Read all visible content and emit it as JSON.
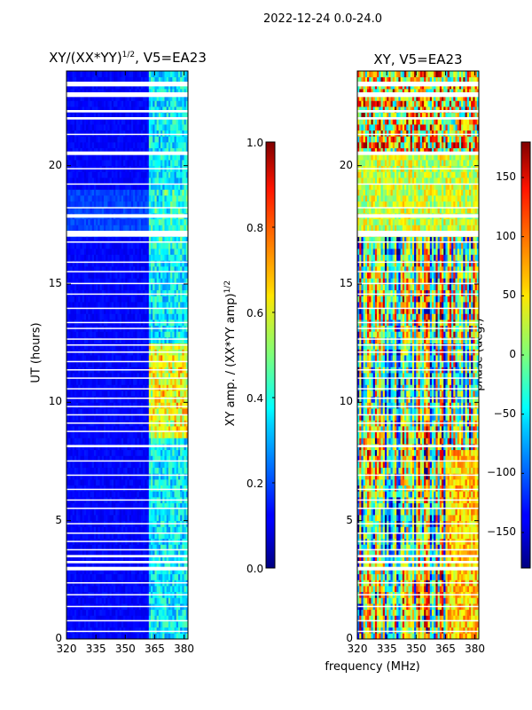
{
  "suptitle": "2022-12-24 0.0-24.0",
  "chart_data": [
    {
      "type": "heatmap",
      "title": "XY/(XX*YY)^1/2, V5=EA23",
      "title_main": "XY/(XX*YY)",
      "title_exp": "1/2",
      "title_tail": ", V5=EA23",
      "xlabel": "",
      "ylabel": "UT (hours)",
      "xlim": [
        320,
        382
      ],
      "ylim": [
        0,
        24
      ],
      "xticks": [
        320,
        335,
        350,
        365,
        380
      ],
      "yticks": [
        0,
        5,
        10,
        15,
        20
      ],
      "colormap": "jet",
      "colorbar": {
        "label": "XY amp. / (XX*YY amp)^1/2",
        "label_main": "XY amp. / (XX*YY amp)",
        "label_exp": "1/2",
        "range": [
          0.0,
          1.0
        ],
        "ticks": [
          "0.0",
          "0.2",
          "0.4",
          "0.6",
          "0.8",
          "1.0"
        ]
      },
      "description_values": "mostly low (~0.05-0.15) except channels ~362-381 MHz with values ~0.3-0.7"
    },
    {
      "type": "heatmap",
      "title": "XY, V5=EA23",
      "xlabel": "frequency (MHz)",
      "ylabel": "",
      "xlim": [
        320,
        382
      ],
      "ylim": [
        0,
        24
      ],
      "xticks": [
        320,
        335,
        350,
        365,
        380
      ],
      "yticks": [
        0,
        5,
        10,
        15,
        20
      ],
      "colormap": "jet",
      "colorbar": {
        "label": "phase (deg.)",
        "range": [
          -180,
          180
        ],
        "ticks": [
          "−150",
          "−100",
          "−50",
          "0",
          "50",
          "100",
          "150"
        ]
      }
    }
  ],
  "gap_bands_hours": [
    [
      23.35,
      23.55
    ],
    [
      22.9,
      23.1
    ],
    [
      22.25,
      22.35
    ],
    [
      21.95,
      22.05
    ],
    [
      21.3,
      21.35
    ],
    [
      20.45,
      20.6
    ],
    [
      19.85,
      19.9
    ],
    [
      19.2,
      19.25
    ],
    [
      18.2,
      18.25
    ],
    [
      17.8,
      17.95
    ],
    [
      17.0,
      17.25
    ],
    [
      16.75,
      16.8
    ],
    [
      15.9,
      15.95
    ],
    [
      15.5,
      15.55
    ],
    [
      15.0,
      15.05
    ],
    [
      14.55,
      14.6
    ],
    [
      13.95,
      14.0
    ],
    [
      13.35,
      13.4
    ],
    [
      13.1,
      13.15
    ],
    [
      12.65,
      12.7
    ],
    [
      12.4,
      12.45
    ],
    [
      12.1,
      12.15
    ],
    [
      11.7,
      11.75
    ],
    [
      11.35,
      11.4
    ],
    [
      11.0,
      11.05
    ],
    [
      10.55,
      10.6
    ],
    [
      10.15,
      10.2
    ],
    [
      9.8,
      9.85
    ],
    [
      9.45,
      9.5
    ],
    [
      9.1,
      9.15
    ],
    [
      8.75,
      8.8
    ],
    [
      8.1,
      8.2
    ],
    [
      7.5,
      7.55
    ],
    [
      6.9,
      6.95
    ],
    [
      6.3,
      6.35
    ],
    [
      5.85,
      5.9
    ],
    [
      5.5,
      5.55
    ],
    [
      4.85,
      4.9
    ],
    [
      4.45,
      4.5
    ],
    [
      4.1,
      4.15
    ],
    [
      3.75,
      3.8
    ],
    [
      3.45,
      3.55
    ],
    [
      3.2,
      3.3
    ],
    [
      2.9,
      3.05
    ],
    [
      2.35,
      2.4
    ],
    [
      1.85,
      1.9
    ],
    [
      1.35,
      1.4
    ],
    [
      0.75,
      0.8
    ],
    [
      0.3,
      0.35
    ]
  ]
}
